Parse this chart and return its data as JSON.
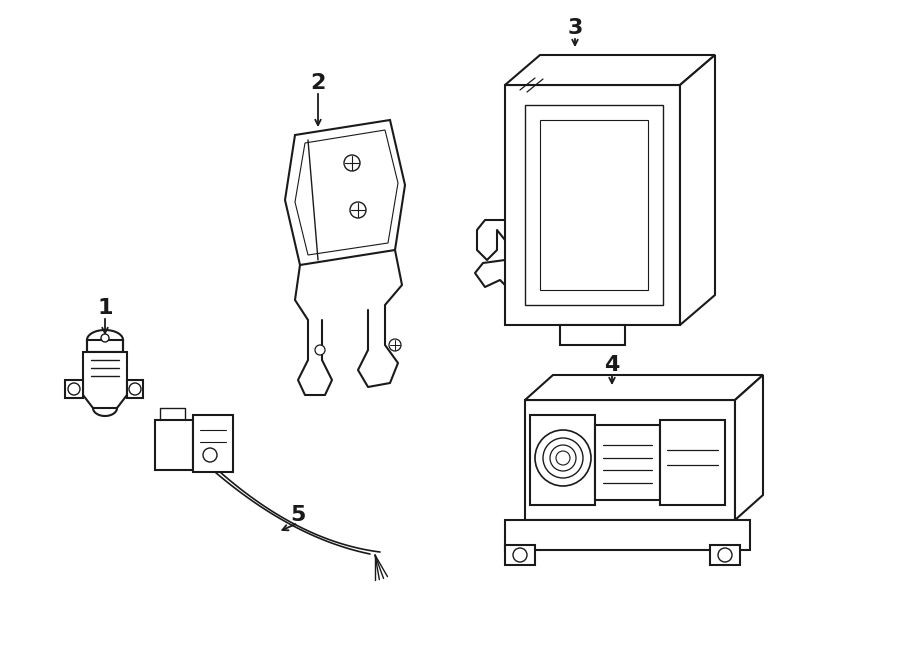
{
  "background_color": "#ffffff",
  "line_color": "#1a1a1a",
  "line_width": 1.5,
  "fig_width": 9.0,
  "fig_height": 6.61,
  "dpi": 100
}
